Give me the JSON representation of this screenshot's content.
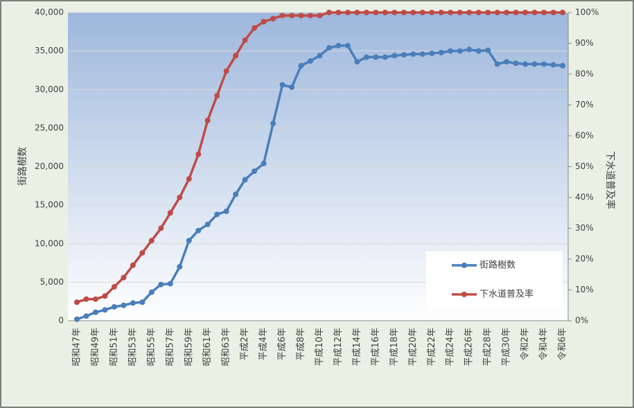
{
  "chart_data": {
    "type": "line",
    "categories": [
      "昭和47年",
      null,
      "昭和49年",
      null,
      "昭和51年",
      null,
      "昭和53年",
      null,
      "昭和55年",
      null,
      "昭和57年",
      null,
      "昭和59年",
      null,
      "昭和61年",
      null,
      "昭和63年",
      null,
      "平成2年",
      null,
      "平成4年",
      null,
      "平成6年",
      null,
      "平成8年",
      null,
      "平成10年",
      null,
      "平成12年",
      null,
      "平成14年",
      null,
      "平成16年",
      null,
      "平成18年",
      null,
      "平成20年",
      null,
      "平成22年",
      null,
      "平成24年",
      null,
      "平成26年",
      null,
      "平成28年",
      null,
      "平成30年",
      null,
      "令和2年",
      null,
      "令和4年",
      null,
      "令和6年"
    ],
    "series": [
      {
        "name": "街路樹数",
        "color": "#4a7ebb",
        "values": [
          200,
          600,
          1100,
          1400,
          1800,
          2000,
          2300,
          2400,
          3700,
          4700,
          4800,
          7000,
          10400,
          11700,
          12500,
          13800,
          14200,
          16400,
          18300,
          19400,
          20400,
          25600,
          30600,
          30300,
          33100,
          33700,
          34400,
          35400,
          35700,
          35700,
          33600,
          34200,
          34200,
          34200,
          34400,
          34500,
          34600,
          34600,
          34700,
          34800,
          35000,
          35000,
          35200,
          35000,
          35100,
          33300,
          33600,
          33400,
          33300,
          33300,
          33300,
          33200,
          33100
        ]
      },
      {
        "name": "下水道普及率",
        "color": "#be4b48",
        "axis": "y2",
        "values": [
          6,
          7,
          7,
          8,
          11,
          14,
          18,
          22,
          26,
          30,
          35,
          40,
          46,
          54,
          65,
          73,
          81,
          86,
          91,
          95,
          97,
          98,
          99,
          99,
          99,
          99,
          99,
          100,
          100,
          100,
          100,
          100,
          100,
          100,
          100,
          100,
          100,
          100,
          100,
          100,
          100,
          100,
          100,
          100,
          100,
          100,
          100,
          100,
          100,
          100,
          100,
          100,
          100
        ]
      }
    ],
    "ylabel": "街路樹数",
    "y2label": "下水道普及率",
    "ylim": [
      0,
      40000
    ],
    "yticks": [
      0,
      {
        "value": 5000,
        "label": "5,000"
      },
      {
        "value": 10000,
        "label": "10,000"
      },
      {
        "value": 15000,
        "label": "15,000"
      },
      {
        "value": 20000,
        "label": "20,000"
      },
      {
        "value": 25000,
        "label": "25,000"
      },
      {
        "value": 30000,
        "label": "30,000"
      },
      {
        "value": 35000,
        "label": "35,000"
      },
      {
        "value": 40000,
        "label": "40,000"
      }
    ],
    "y2lim": [
      0,
      100
    ],
    "y2ticks": [
      {
        "value": 0,
        "label": "0%"
      },
      {
        "value": 10,
        "label": "10%"
      },
      {
        "value": 20,
        "label": "20%"
      },
      {
        "value": 30,
        "label": "30%"
      },
      {
        "value": 40,
        "label": "40%"
      },
      {
        "value": 50,
        "label": "50%"
      },
      {
        "value": 60,
        "label": "60%"
      },
      {
        "value": 70,
        "label": "70%"
      },
      {
        "value": 80,
        "label": "80%"
      },
      {
        "value": 90,
        "label": "90%"
      },
      {
        "value": 100,
        "label": "100%"
      }
    ],
    "grid": true,
    "legend": "lower right"
  }
}
